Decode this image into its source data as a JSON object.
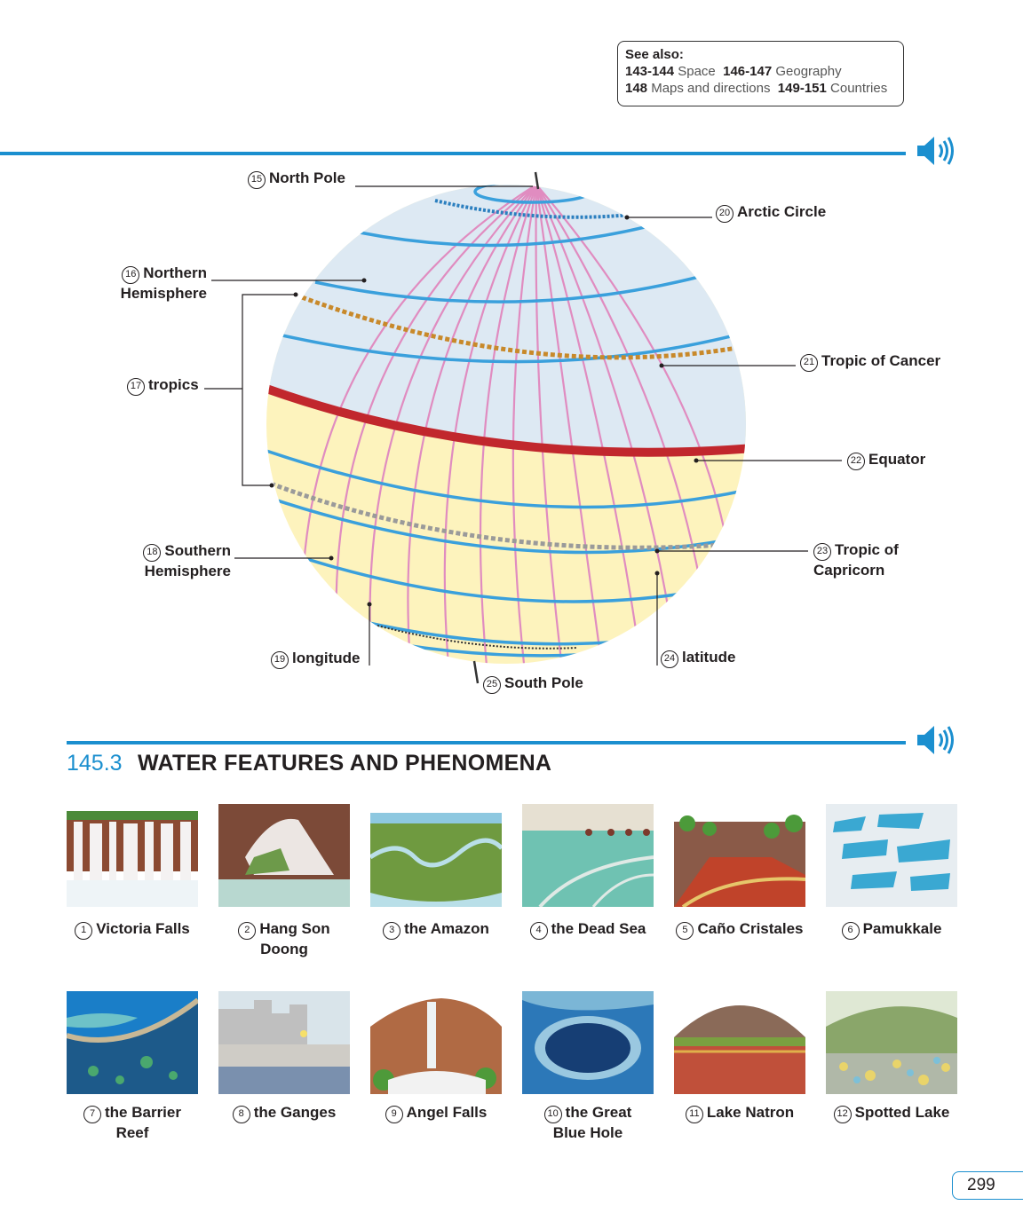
{
  "see_also": {
    "title": "See also:",
    "line1_a_num": "143-144",
    "line1_a_text": "Space",
    "line1_b_num": "146-147",
    "line1_b_text": "Geography",
    "line2_a_num": "148",
    "line2_a_text": "Maps and directions",
    "line2_b_num": "149-151",
    "line2_b_text": "Countries"
  },
  "globe_labels": [
    {
      "num": "15",
      "text": "North Pole"
    },
    {
      "num": "16",
      "text": "Northern",
      "text2": "Hemisphere"
    },
    {
      "num": "17",
      "text": "tropics"
    },
    {
      "num": "18",
      "text": "Southern",
      "text2": "Hemisphere"
    },
    {
      "num": "19",
      "text": "longitude"
    },
    {
      "num": "20",
      "text": "Arctic Circle"
    },
    {
      "num": "21",
      "text": "Tropic of Cancer"
    },
    {
      "num": "22",
      "text": "Equator"
    },
    {
      "num": "23",
      "text": "Tropic of",
      "text2": "Capricorn"
    },
    {
      "num": "24",
      "text": "latitude"
    },
    {
      "num": "25",
      "text": "South Pole"
    }
  ],
  "section": {
    "number": "145.3",
    "title": "WATER FEATURES AND PHENOMENA"
  },
  "features": [
    {
      "num": "1",
      "text": "Victoria Falls",
      "text2": ""
    },
    {
      "num": "2",
      "text": "Hang Son",
      "text2": "Doong"
    },
    {
      "num": "3",
      "text": "the Amazon",
      "text2": ""
    },
    {
      "num": "4",
      "text": "the Dead Sea",
      "text2": ""
    },
    {
      "num": "5",
      "text": "Caño Cristales",
      "text2": ""
    },
    {
      "num": "6",
      "text": "Pamukkale",
      "text2": ""
    },
    {
      "num": "7",
      "text": "the Barrier",
      "text2": "Reef"
    },
    {
      "num": "8",
      "text": "the Ganges",
      "text2": ""
    },
    {
      "num": "9",
      "text": "Angel Falls",
      "text2": ""
    },
    {
      "num": "10",
      "text": "the Great",
      "text2": "Blue Hole"
    },
    {
      "num": "11",
      "text": "Lake Natron",
      "text2": ""
    },
    {
      "num": "12",
      "text": "Spotted Lake",
      "text2": ""
    }
  ],
  "page_number": "299",
  "colors": {
    "accent": "#1b8fcf",
    "equator": "#c1272d",
    "tropic_cancer": "#c8892a",
    "tropic_capricorn": "#9a9a9a",
    "longitude": "#e08cc0",
    "latitude": "#3aa0dc"
  },
  "icons": {
    "audio": "speaker-icon"
  }
}
